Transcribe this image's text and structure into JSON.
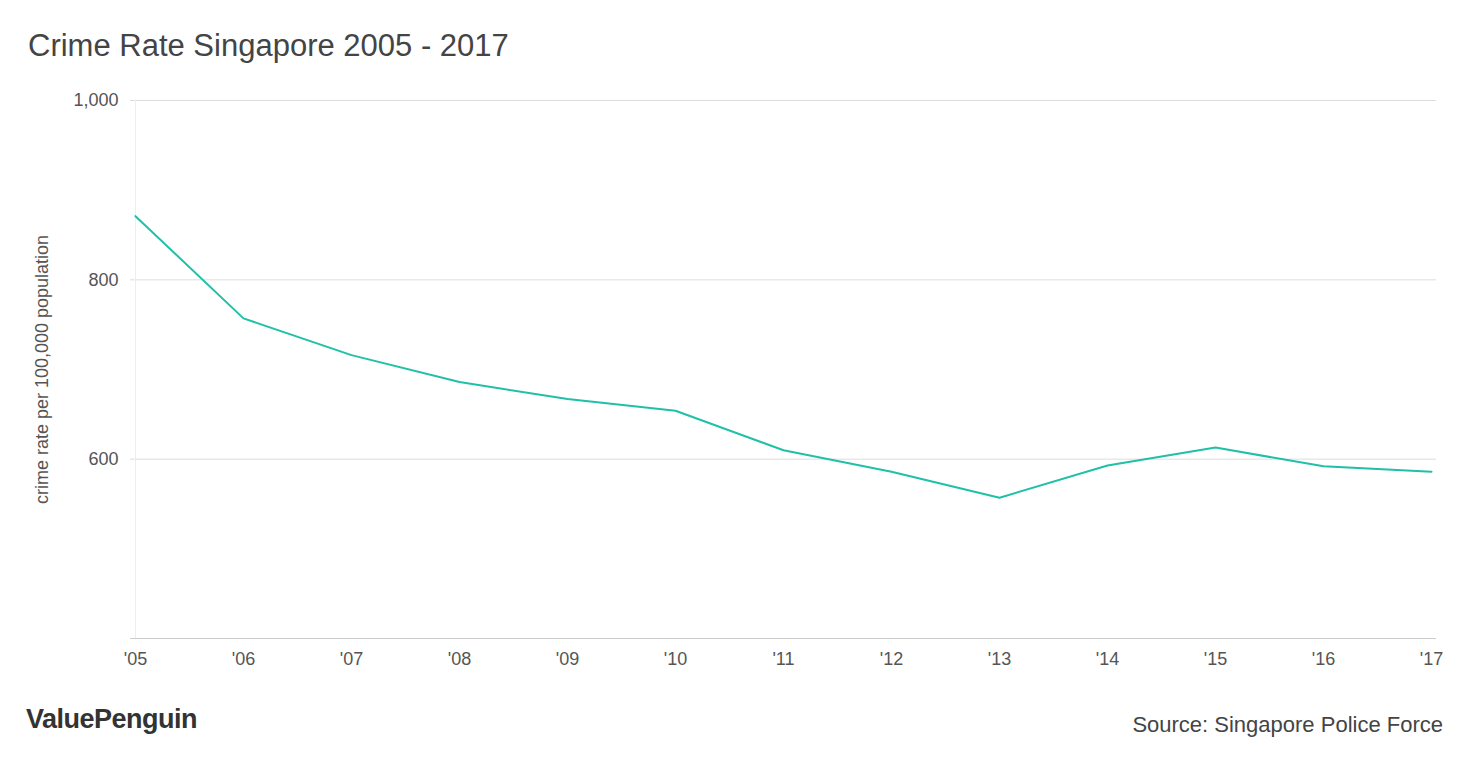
{
  "chart_data": {
    "type": "line",
    "title": "Crime Rate Singapore 2005 - 2017",
    "y_label": "crime rate per 100,000 population",
    "categories": [
      "'05",
      "'06",
      "'07",
      "'08",
      "'09",
      "'10",
      "'11",
      "'12",
      "'13",
      "'14",
      "'15",
      "'16",
      "'17"
    ],
    "values": [
      871,
      757,
      716,
      686,
      667,
      654,
      610,
      586,
      557,
      593,
      613,
      592,
      586
    ],
    "color": "#20c0a8",
    "ylim": [
      400,
      1000
    ],
    "yticks": [
      600,
      800,
      {
        "value": 1000,
        "label": "1,000"
      }
    ],
    "grid": true,
    "source": "Source: Singapore Police Force",
    "brand": "ValuePenguin"
  }
}
